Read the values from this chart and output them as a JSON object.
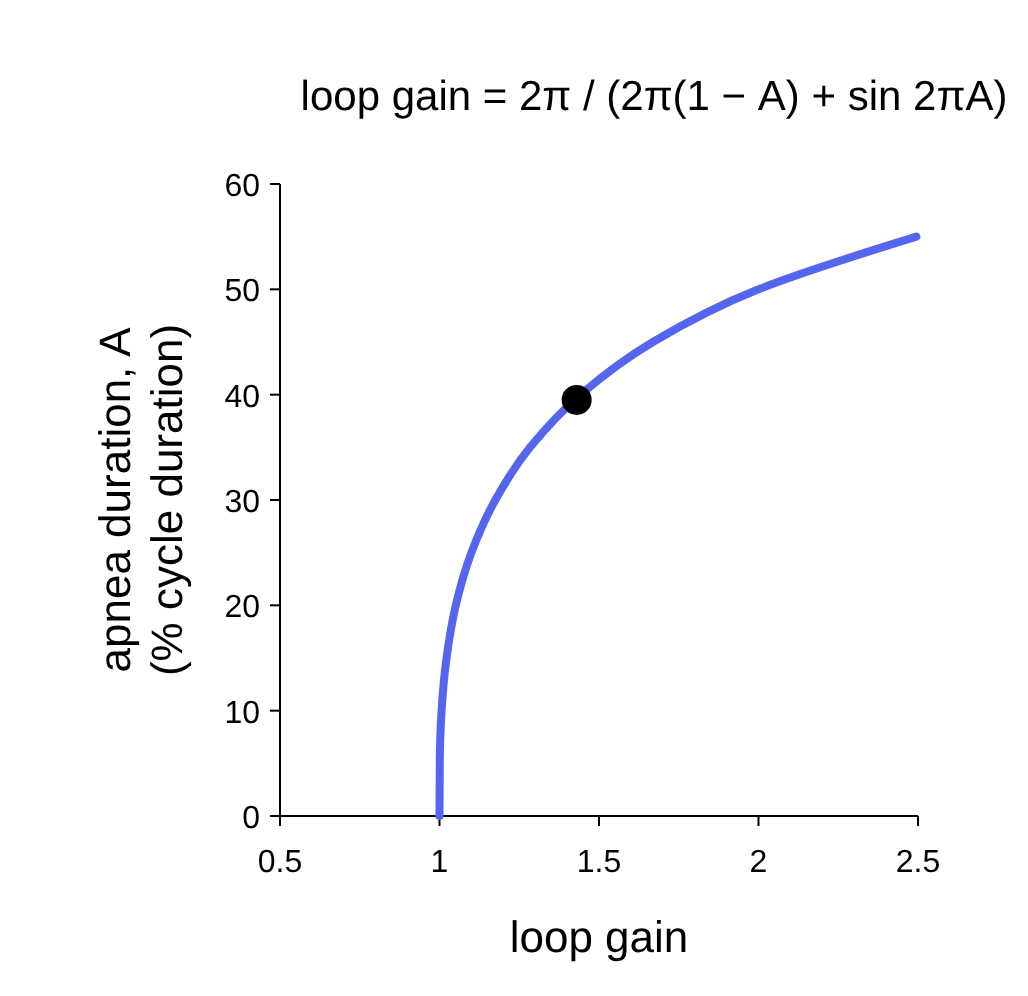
{
  "chart_data": {
    "type": "line",
    "title": "loop gain = 2π / (2π(1 − A) + sin 2πA)",
    "xlabel": "loop gain",
    "ylabel": "apnea duration, A\n(% cycle duration)",
    "xlim": [
      0.5,
      2.5
    ],
    "ylim": [
      0,
      60
    ],
    "xticks": [
      0.5,
      1,
      1.5,
      2,
      2.5
    ],
    "yticks": [
      0,
      10,
      20,
      30,
      40,
      50,
      60
    ],
    "grid": false,
    "series": [
      {
        "color": "#5566ee",
        "x": [
          1,
          1.0008,
          1.0065,
          1.022,
          1.051,
          1.1,
          1.175,
          1.284,
          1.442,
          1.669,
          2,
          2.495
        ],
        "values": [
          0,
          5,
          10,
          15,
          20,
          25,
          30,
          35,
          40,
          45,
          50,
          55
        ]
      },
      {
        "type": "scatter",
        "color": "#000000",
        "marker": "circle",
        "x": [
          1.43
        ],
        "values": [
          39.5
        ]
      }
    ]
  }
}
